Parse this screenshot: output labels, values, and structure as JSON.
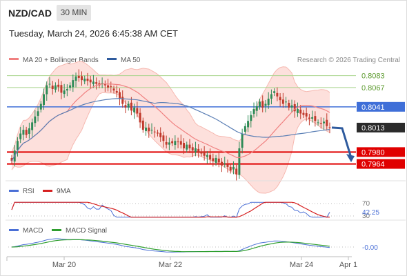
{
  "header": {
    "symbol": "NZD/CAD",
    "timeframe": "30 MIN",
    "timestamp": "Tuesday, March 24, 2026 6:45:38 AM CET"
  },
  "legend": {
    "ma20_label": "MA 20 + Bollinger Bands",
    "ma50_label": "MA 50",
    "credit": "Research © 2026 Trading Central"
  },
  "colors": {
    "up_candle": "#2e8b57",
    "down_candle": "#c0392b",
    "ma20": "#f08080",
    "bollinger_fill": "#fde0dc",
    "ma50": "#5b7fb5",
    "resistance_line": "#a8d48c",
    "pivot_line": "#3f6fd8",
    "support_line": "#e00000",
    "current_price_box": "#2b2b2b",
    "forecast_arrow": "#2f5b9e",
    "rsi": "#4a6fd6",
    "rsi_ma": "#d62020",
    "macd": "#4a6fd6",
    "macd_signal": "#2e9e2e"
  },
  "chart_data": [
    {
      "type": "candlestick",
      "x_tick_labels": [
        "Mar 20",
        "Mar 22",
        "Mar 24",
        "Apr 1"
      ],
      "ylim": [
        0.7945,
        0.8092
      ],
      "levels": [
        {
          "label": "0.8083",
          "value": 0.8083,
          "kind": "resistance"
        },
        {
          "label": "0.8067",
          "value": 0.8067,
          "kind": "resistance"
        },
        {
          "label": "0.8041",
          "value": 0.8041,
          "kind": "pivot"
        },
        {
          "label": "0.8013",
          "value": 0.8013,
          "kind": "current"
        },
        {
          "label": "0.7980",
          "value": 0.798,
          "kind": "support"
        },
        {
          "label": "0.7964",
          "value": 0.7964,
          "kind": "support"
        }
      ],
      "closes": [
        0.7968,
        0.7982,
        0.7995,
        0.8005,
        0.801,
        0.8003,
        0.8012,
        0.802,
        0.8028,
        0.8035,
        0.8045,
        0.8058,
        0.807,
        0.8072,
        0.8065,
        0.807,
        0.8068,
        0.806,
        0.8063,
        0.8065,
        0.807,
        0.8077,
        0.8082,
        0.808,
        0.8077,
        0.8079,
        0.8076,
        0.8074,
        0.8075,
        0.8072,
        0.807,
        0.8073,
        0.807,
        0.8067,
        0.8068,
        0.8063,
        0.806,
        0.8052,
        0.8045,
        0.804,
        0.8045,
        0.8036,
        0.804,
        0.8032,
        0.802,
        0.801,
        0.8013,
        0.8008,
        0.801,
        0.8007,
        0.8005,
        0.8,
        0.7995,
        0.799,
        0.7993,
        0.7992,
        0.7995,
        0.7994,
        0.799,
        0.7985,
        0.799,
        0.7985,
        0.7982,
        0.7985,
        0.798,
        0.7978,
        0.7975,
        0.7976,
        0.797,
        0.7968,
        0.7972,
        0.7966,
        0.7962,
        0.7965,
        0.796,
        0.7955,
        0.796,
        0.795,
        0.7985,
        0.8005,
        0.8015,
        0.8022,
        0.803,
        0.8038,
        0.8042,
        0.8048,
        0.804,
        0.8045,
        0.8052,
        0.8058,
        0.8062,
        0.8055,
        0.805,
        0.8045,
        0.8048,
        0.804,
        0.8043,
        0.8035,
        0.8038,
        0.8032,
        0.803,
        0.8028,
        0.8025,
        0.8027,
        0.8022,
        0.802,
        0.8018,
        0.8021,
        0.8015,
        0.8013
      ],
      "ma20_ma50_bands": "computed from closes: MA 20, Bollinger Bands (20, 2), MA 50",
      "forecast": {
        "from": 0.8013,
        "to": 0.797,
        "direction": "down"
      }
    },
    {
      "type": "line",
      "title": "RSI",
      "series": [
        {
          "name": "RSI",
          "role": "rsi"
        },
        {
          "name": "9MA",
          "role": "ma"
        }
      ],
      "guide_levels": [
        "70",
        "30"
      ],
      "last_value_label": "42.25",
      "last_value": 42.25,
      "ylim": [
        30,
        70
      ]
    },
    {
      "type": "line",
      "title": "MACD",
      "series": [
        {
          "name": "MACD",
          "role": "macd"
        },
        {
          "name": "MACD Signal",
          "role": "signal"
        }
      ],
      "last_value_label": "-0.00",
      "last_value": -0.0
    }
  ]
}
